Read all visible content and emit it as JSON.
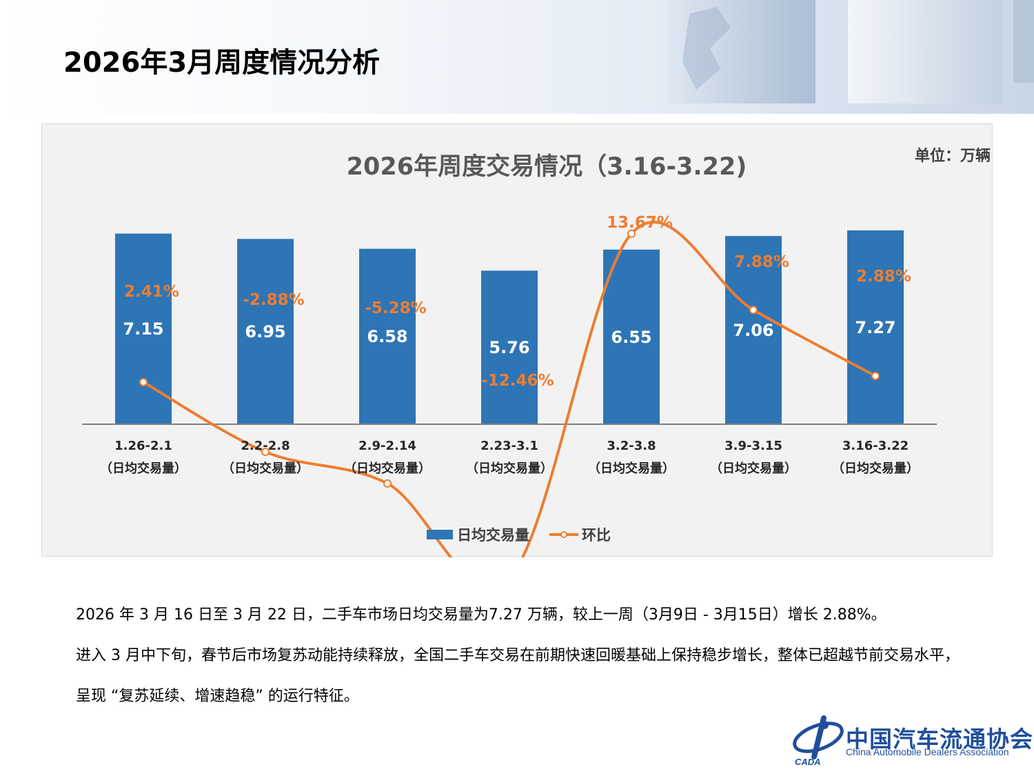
{
  "page": {
    "title": "2026年3月周度情况分析"
  },
  "chart_data": {
    "type": "bar",
    "title": "2026年周度交易情况（3.16-3.22)",
    "unit_label": "单位：万辆",
    "categories": [
      "1.26-2.1",
      "2.2-2.8",
      "2.9-2.14",
      "2.23-3.1",
      "3.2-3.8",
      "3.9-3.15",
      "3.16-3.22"
    ],
    "category_sublabel": "（日均交易量）",
    "series": [
      {
        "name": "日均交易量",
        "type": "bar",
        "color": "#2e75b6",
        "values": [
          7.15,
          6.95,
          6.58,
          5.76,
          6.55,
          7.06,
          7.27
        ],
        "value_labels": [
          "7.15",
          "6.95",
          "6.58",
          "5.76",
          "6.55",
          "7.06",
          "7.27"
        ]
      },
      {
        "name": "环比",
        "type": "line",
        "color": "#ed7d31",
        "values": [
          2.41,
          -2.88,
          -5.28,
          -12.46,
          13.67,
          7.88,
          2.88
        ],
        "value_labels": [
          "2.41%",
          "-2.88%",
          "-5.28%",
          "-12.46%",
          "13.67%",
          "7.88%",
          "2.88%"
        ]
      }
    ],
    "legend_position": "bottom",
    "grid": false
  },
  "body": {
    "paragraph1": "2026 年 3 月 16 日至 3 月 22 日，二手车市场日均交易量为7.27 万辆，较上一周（3月9日 - 3月15日）增长 2.88%。",
    "paragraph2": "进入 3 月中下旬，春节后市场复苏动能持续释放，全国二手车交易在前期快速回暖基础上保持稳步增长，整体已超越节前交易水平，呈现 “复苏延续、增速趋稳” 的运行特征。"
  },
  "logo": {
    "name_cn": "中国汽车流通协会",
    "name_en": "China Automobile Dealers Association",
    "mark_text": "CADA"
  }
}
